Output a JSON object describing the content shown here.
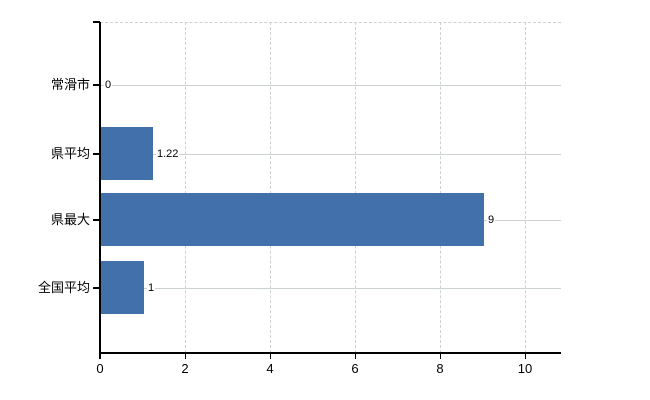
{
  "chart_data": {
    "type": "bar",
    "orientation": "horizontal",
    "categories": [
      "常滑市",
      "県平均",
      "県最大",
      "全国平均"
    ],
    "values": [
      0,
      1.22,
      9,
      1
    ],
    "value_labels": [
      "0",
      "1.22",
      "9",
      "1"
    ],
    "x_tick_labels": [
      "0",
      "2",
      "4",
      "6",
      "8",
      "10"
    ],
    "x_tick_values": [
      0,
      2,
      4,
      6,
      8,
      10
    ],
    "xlim": [
      0,
      10.85
    ],
    "grid": {
      "horizontal": "solid",
      "vertical": "dashed",
      "top_border": "dashed"
    },
    "legend": "none",
    "colors": {
      "bar": "#4270ab",
      "horizontal_gridline": "#ccd3cc",
      "vertical_gridline": "#cdd2cd",
      "top_border": "#d3cdd2",
      "axis": "#000000",
      "text": "#000000",
      "background": "#ffffff"
    }
  }
}
